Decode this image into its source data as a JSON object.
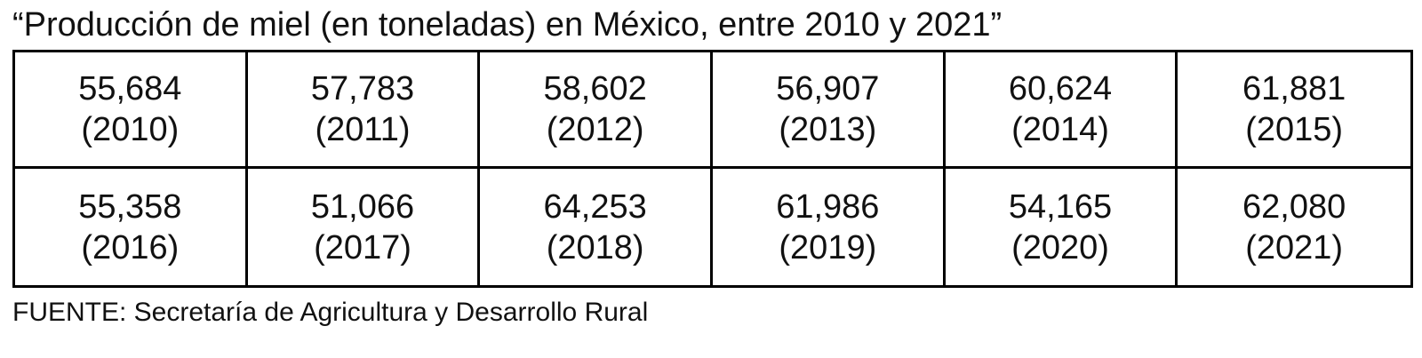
{
  "title": "“Producción de miel (en toneladas) en México, entre 2010 y 2021”",
  "source": "FUENTE: Secretaría de Agricultura y Desarrollo Rural",
  "chart_data": {
    "type": "table",
    "title": "“Producción de miel (en toneladas) en México, entre 2010 y 2021”",
    "rows": [
      [
        {
          "value": "55,684",
          "year": "(2010)"
        },
        {
          "value": "57,783",
          "year": "(2011)"
        },
        {
          "value": "58,602",
          "year": "(2012)"
        },
        {
          "value": "56,907",
          "year": "(2013)"
        },
        {
          "value": "60,624",
          "year": "(2014)"
        },
        {
          "value": "61,881",
          "year": "(2015)"
        }
      ],
      [
        {
          "value": "55,358",
          "year": "(2016)"
        },
        {
          "value": "51,066",
          "year": "(2017)"
        },
        {
          "value": "64,253",
          "year": "(2018)"
        },
        {
          "value": "61,986",
          "year": "(2019)"
        },
        {
          "value": "54,165",
          "year": "(2020)"
        },
        {
          "value": "62,080",
          "year": "(2021)"
        }
      ]
    ],
    "x": [
      2010,
      2011,
      2012,
      2013,
      2014,
      2015,
      2016,
      2017,
      2018,
      2019,
      2020,
      2021
    ],
    "values": [
      55684,
      57783,
      58602,
      56907,
      60624,
      61881,
      55358,
      51066,
      64253,
      61986,
      54165,
      62080
    ]
  }
}
